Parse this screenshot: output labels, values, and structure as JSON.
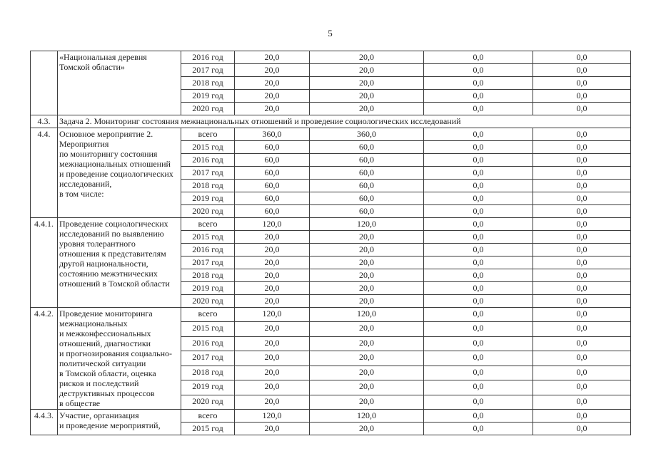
{
  "page": {
    "number": "5"
  },
  "colors": {
    "page_background": "#ffffff",
    "text": "#222222",
    "table_border": "#3c3c3c"
  },
  "table": {
    "groups": [
      {
        "kind": "data",
        "num": "",
        "description": "«Национальная деревня\nТомской области»",
        "rows": [
          {
            "period": "2016 год",
            "values": [
              "20,0",
              "20,0",
              "0,0",
              "0,0"
            ]
          },
          {
            "period": "2017 год",
            "values": [
              "20,0",
              "20,0",
              "0,0",
              "0,0"
            ]
          },
          {
            "period": "2018 год",
            "values": [
              "20,0",
              "20,0",
              "0,0",
              "0,0"
            ]
          },
          {
            "period": "2019 год",
            "values": [
              "20,0",
              "20,0",
              "0,0",
              "0,0"
            ]
          },
          {
            "period": "2020 год",
            "values": [
              "20,0",
              "20,0",
              "0,0",
              "0,0"
            ]
          }
        ]
      },
      {
        "kind": "section",
        "num": "4.3.",
        "text": "Задача 2. Мониторинг состояния межнациональных отношений и проведение социологических исследований"
      },
      {
        "kind": "data",
        "num": "4.4.",
        "description": "Основное мероприятие 2.\nМероприятия\nпо мониторингу состояния\nмежнациональных отношений\nи проведение социологических\nисследований,\nв том числе:",
        "rows": [
          {
            "period": "всего",
            "values": [
              "360,0",
              "360,0",
              "0,0",
              "0,0"
            ]
          },
          {
            "period": "2015 год",
            "values": [
              "60,0",
              "60,0",
              "0,0",
              "0,0"
            ]
          },
          {
            "period": "2016 год",
            "values": [
              "60,0",
              "60,0",
              "0,0",
              "0,0"
            ]
          },
          {
            "period": "2017 год",
            "values": [
              "60,0",
              "60,0",
              "0,0",
              "0,0"
            ]
          },
          {
            "period": "2018 год",
            "values": [
              "60,0",
              "60,0",
              "0,0",
              "0,0"
            ]
          },
          {
            "period": "2019 год",
            "values": [
              "60,0",
              "60,0",
              "0,0",
              "0,0"
            ]
          },
          {
            "period": "2020 год",
            "values": [
              "60,0",
              "60,0",
              "0,0",
              "0,0"
            ]
          }
        ]
      },
      {
        "kind": "data",
        "num": "4.4.1.",
        "description": "Проведение социологических\nисследований по выявлению\nуровня толерантного\nотношения к представителям\nдругой национальности,\nсостоянию межэтнических\nотношений в Томской области",
        "rows": [
          {
            "period": "всего",
            "values": [
              "120,0",
              "120,0",
              "0,0",
              "0,0"
            ]
          },
          {
            "period": "2015 год",
            "values": [
              "20,0",
              "20,0",
              "0,0",
              "0,0"
            ]
          },
          {
            "period": "2016 год",
            "values": [
              "20,0",
              "20,0",
              "0,0",
              "0,0"
            ]
          },
          {
            "period": "2017 год",
            "values": [
              "20,0",
              "20,0",
              "0,0",
              "0,0"
            ]
          },
          {
            "period": "2018 год",
            "values": [
              "20,0",
              "20,0",
              "0,0",
              "0,0"
            ]
          },
          {
            "period": "2019 год",
            "values": [
              "20,0",
              "20,0",
              "0,0",
              "0,0"
            ]
          },
          {
            "period": "2020 год",
            "values": [
              "20,0",
              "20,0",
              "0,0",
              "0,0"
            ]
          }
        ]
      },
      {
        "kind": "data",
        "num": "4.4.2.",
        "description": "Проведение мониторинга\nмежнациональных\nи межконфессиональных\nотношений, диагностики\nи прогнозирования социально-\nполитической ситуации\nв Томской области, оценка\nрисков и последствий\nдеструктивных процессов\nв обществе",
        "rows": [
          {
            "period": "всего",
            "values": [
              "120,0",
              "120,0",
              "0,0",
              "0,0"
            ]
          },
          {
            "period": "2015 год",
            "values": [
              "20,0",
              "20,0",
              "0,0",
              "0,0"
            ]
          },
          {
            "period": "2016 год",
            "values": [
              "20,0",
              "20,0",
              "0,0",
              "0,0"
            ]
          },
          {
            "period": "2017 год",
            "values": [
              "20,0",
              "20,0",
              "0,0",
              "0,0"
            ]
          },
          {
            "period": "2018 год",
            "values": [
              "20,0",
              "20,0",
              "0,0",
              "0,0"
            ]
          },
          {
            "period": "2019 год",
            "values": [
              "20,0",
              "20,0",
              "0,0",
              "0,0"
            ]
          },
          {
            "period": "2020 год",
            "values": [
              "20,0",
              "20,0",
              "0,0",
              "0,0"
            ]
          }
        ]
      },
      {
        "kind": "data",
        "num": "4.4.3.",
        "description": "Участие, организация\nи проведение мероприятий,",
        "rows": [
          {
            "period": "всего",
            "values": [
              "120,0",
              "120,0",
              "0,0",
              "0,0"
            ]
          },
          {
            "period": "2015 год",
            "values": [
              "20,0",
              "20,0",
              "0,0",
              "0,0"
            ]
          }
        ]
      }
    ]
  }
}
